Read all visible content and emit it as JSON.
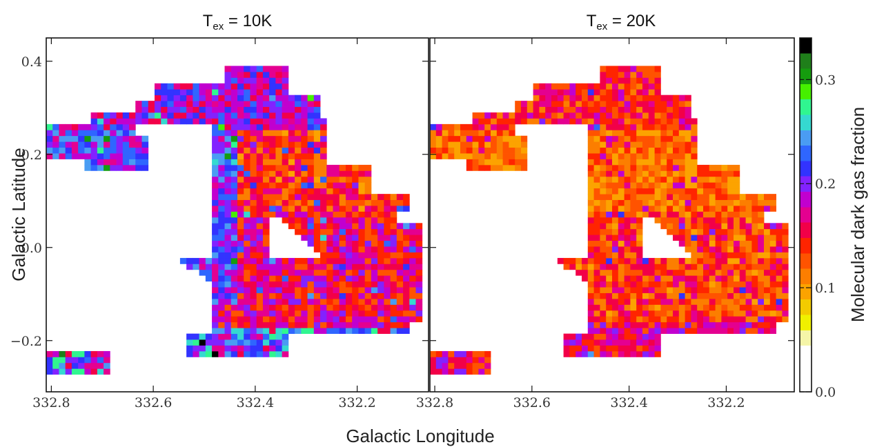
{
  "chart_data": {
    "type": "heatmap",
    "panels": [
      {
        "title_main": "T",
        "title_sub": "ex",
        "title_rest": " = 10K",
        "variant": "10K"
      },
      {
        "title_main": "T",
        "title_sub": "ex",
        "title_rest": " = 20K",
        "variant": "20K"
      }
    ],
    "xlabel": "Galactic Longitude",
    "ylabel": "Galactic Latitude",
    "xlim": [
      332.81,
      332.06
    ],
    "ylim": [
      -0.31,
      0.45
    ],
    "x_ticks": [
      {
        "value": 332.8,
        "label": "332.8"
      },
      {
        "value": 332.6,
        "label": "332.6"
      },
      {
        "value": 332.4,
        "label": "332.4"
      },
      {
        "value": 332.2,
        "label": "332.2"
      }
    ],
    "y_ticks": [
      {
        "value": 0.4,
        "label": "0.4"
      },
      {
        "value": 0.2,
        "label": "0.2"
      },
      {
        "value": 0.0,
        "label": "0.0"
      },
      {
        "value": -0.2,
        "label": "−0.2"
      }
    ],
    "colorbar": {
      "label": "Molecular dark gas fraction",
      "range": [
        0.0,
        0.34
      ],
      "ticks": [
        {
          "value": 0.0,
          "label": "0.0"
        },
        {
          "value": 0.1,
          "label": "0.1"
        },
        {
          "value": 0.2,
          "label": "0.2"
        },
        {
          "value": 0.3,
          "label": "0.3"
        }
      ],
      "colors": [
        "#ffffff",
        "#ffffff",
        "#ffffff",
        "#f5f5a8",
        "#f0f000",
        "#f3cb00",
        "#fca300",
        "#fc7e00",
        "#ff5300",
        "#ff2400",
        "#f20048",
        "#e40090",
        "#c100cf",
        "#8222ff",
        "#3233ff",
        "#2f66ff",
        "#4a9cf3",
        "#35d9d0",
        "#30f690",
        "#46f000",
        "#159c0e",
        "#1f7f1a",
        "#000000"
      ]
    },
    "grid": false,
    "legend": "none"
  }
}
